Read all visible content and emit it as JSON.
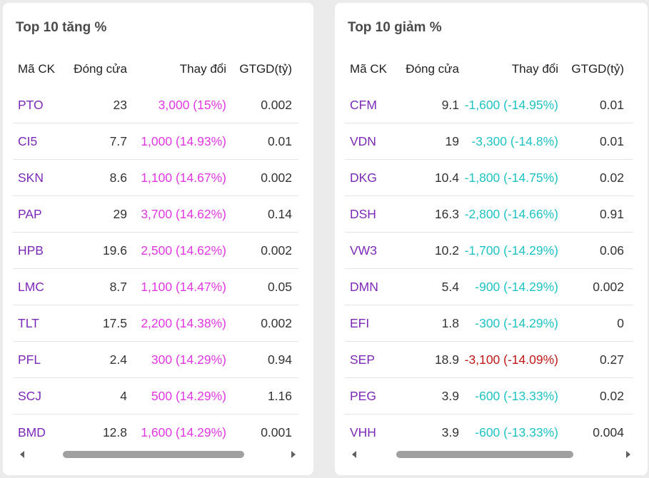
{
  "gainers": {
    "title": "Top 10 tăng %",
    "headers": {
      "symbol": "Mã CK",
      "close": "Đóng cửa",
      "change": "Thay đổi",
      "value": "GTGD(tỷ)",
      "extra": "|"
    },
    "rows": [
      {
        "symbol": "PTO",
        "close": "23",
        "change": "3,000 (15%)",
        "value": "0.002",
        "status": "up"
      },
      {
        "symbol": "CI5",
        "close": "7.7",
        "change": "1,000 (14.93%)",
        "value": "0.01",
        "status": "up"
      },
      {
        "symbol": "SKN",
        "close": "8.6",
        "change": "1,100 (14.67%)",
        "value": "0.002",
        "status": "up"
      },
      {
        "symbol": "PAP",
        "close": "29",
        "change": "3,700 (14.62%)",
        "value": "0.14",
        "status": "up"
      },
      {
        "symbol": "HPB",
        "close": "19.6",
        "change": "2,500 (14.62%)",
        "value": "0.002",
        "status": "up"
      },
      {
        "symbol": "LMC",
        "close": "8.7",
        "change": "1,100 (14.47%)",
        "value": "0.05",
        "status": "up"
      },
      {
        "symbol": "TLT",
        "close": "17.5",
        "change": "2,200 (14.38%)",
        "value": "0.002",
        "status": "up"
      },
      {
        "symbol": "PFL",
        "close": "2.4",
        "change": "300 (14.29%)",
        "value": "0.94",
        "status": "up"
      },
      {
        "symbol": "SCJ",
        "close": "4",
        "change": "500 (14.29%)",
        "value": "1.16",
        "status": "up"
      },
      {
        "symbol": "BMD",
        "close": "12.8",
        "change": "1,600 (14.29%)",
        "value": "0.001",
        "status": "up"
      }
    ]
  },
  "losers": {
    "title": "Top 10 giảm %",
    "headers": {
      "symbol": "Mã CK",
      "close": "Đóng cửa",
      "change": "Thay đổi",
      "value": "GTGD(tỷ)"
    },
    "rows": [
      {
        "symbol": "CFM",
        "close": "9.1",
        "change": "-1,600 (-14.95%)",
        "value": "0.01",
        "status": "down"
      },
      {
        "symbol": "VDN",
        "close": "19",
        "change": "-3,300 (-14.8%)",
        "value": "0.01",
        "status": "down"
      },
      {
        "symbol": "DKG",
        "close": "10.4",
        "change": "-1,800 (-14.75%)",
        "value": "0.02",
        "status": "down"
      },
      {
        "symbol": "DSH",
        "close": "16.3",
        "change": "-2,800 (-14.66%)",
        "value": "0.91",
        "status": "down"
      },
      {
        "symbol": "VW3",
        "close": "10.2",
        "change": "-1,700 (-14.29%)",
        "value": "0.06",
        "status": "down"
      },
      {
        "symbol": "DMN",
        "close": "5.4",
        "change": "-900 (-14.29%)",
        "value": "0.002",
        "status": "down"
      },
      {
        "symbol": "EFI",
        "close": "1.8",
        "change": "-300 (-14.29%)",
        "value": "0",
        "status": "down"
      },
      {
        "symbol": "SEP",
        "close": "18.9",
        "change": "-3,100 (-14.09%)",
        "value": "0.27",
        "status": "ref"
      },
      {
        "symbol": "PEG",
        "close": "3.9",
        "change": "-600 (-13.33%)",
        "value": "0.02",
        "status": "down"
      },
      {
        "symbol": "VHH",
        "close": "3.9",
        "change": "-600 (-13.33%)",
        "value": "0.004",
        "status": "down"
      }
    ]
  },
  "colors": {
    "symbol": "#7b2ab8",
    "up": "#e238e2",
    "down": "#1fc3c3",
    "ref": "#c01818"
  },
  "icons": {
    "scroll_left": "triangle-left-icon",
    "scroll_right": "triangle-right-icon"
  }
}
